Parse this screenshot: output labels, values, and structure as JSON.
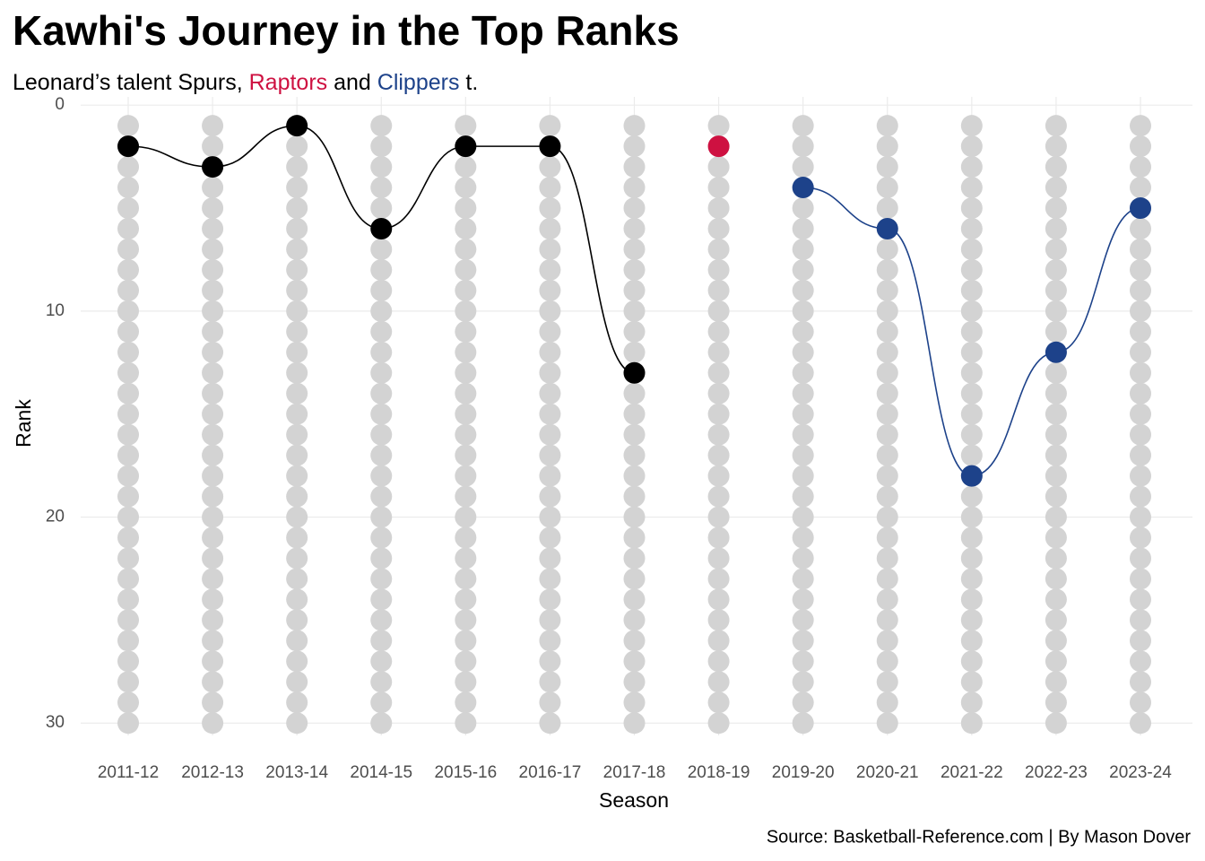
{
  "chart_data": {
    "type": "bump",
    "title": "Kawhi's Journey in the Top Ranks",
    "subtitle": [
      "Leonard’s talent Spurs, ",
      " and ",
      " t."
    ],
    "x_label": "Season",
    "y_label": "Rank",
    "caption": "Source: Basketball-Reference.com | By Mason Dover",
    "categories": [
      "2011-12",
      "2012-13",
      "2013-14",
      "2014-15",
      "2015-16",
      "2016-17",
      "2017-18",
      "2018-19",
      "2019-20",
      "2020-21",
      "2021-22",
      "2022-23",
      "2023-24"
    ],
    "series": [
      {
        "name": "Spurs",
        "color": "#000000",
        "values": [
          2,
          3,
          1,
          6,
          2,
          2,
          13,
          null,
          null,
          null,
          null,
          null,
          null
        ]
      },
      {
        "name": "Raptors",
        "color": "#CE1141",
        "values": [
          null,
          null,
          null,
          null,
          null,
          null,
          null,
          2,
          null,
          null,
          null,
          null,
          null
        ]
      },
      {
        "name": "Clippers",
        "color": "#1D428A",
        "values": [
          null,
          null,
          null,
          null,
          null,
          null,
          null,
          null,
          4,
          6,
          18,
          12,
          5
        ]
      }
    ],
    "ylim": [
      -0.4,
      30.6
    ],
    "y_reversed": true,
    "yticks": [
      0,
      10,
      20,
      30
    ],
    "grid": true,
    "background_color": "#D3D3D3"
  }
}
